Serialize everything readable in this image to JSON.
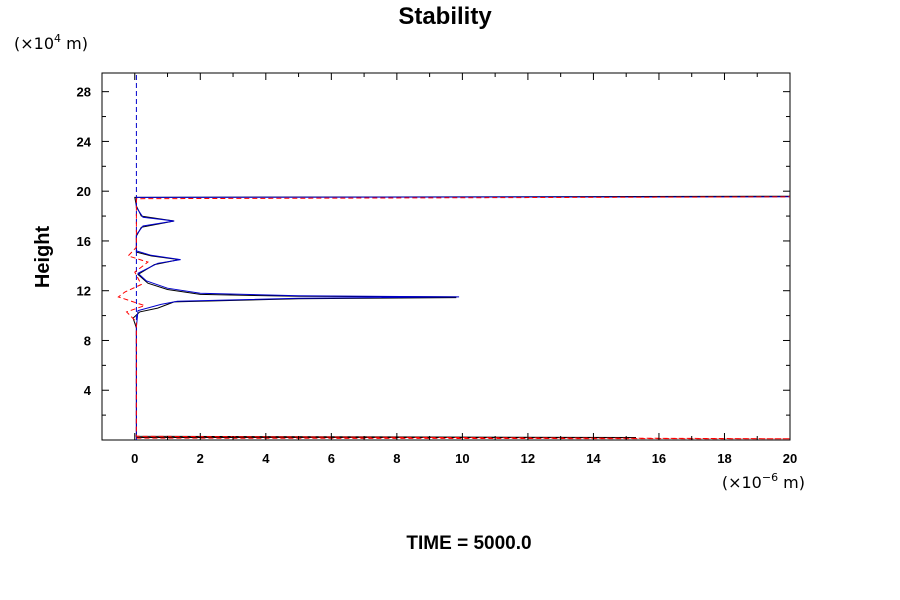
{
  "chart_data": {
    "type": "line",
    "title": "Stability",
    "ylabel": "Height",
    "xlabel": "",
    "y_unit_prefix": "(×10",
    "y_unit_exp": "4",
    "y_unit_suffix": " m)",
    "x_unit_prefix": "(×10",
    "x_unit_exp": "−6",
    "x_unit_suffix": " m)",
    "annotation": "TIME = 5000.0",
    "xlim": [
      -1,
      20
    ],
    "ylim": [
      0,
      29.5
    ],
    "x_ticks": [
      0,
      2,
      4,
      6,
      8,
      10,
      12,
      14,
      16,
      18,
      20
    ],
    "y_ticks": [
      4,
      8,
      12,
      16,
      20,
      24,
      28
    ],
    "x_minor_ticks": [
      -1,
      1,
      3,
      5,
      7,
      9,
      11,
      13,
      15,
      17,
      19
    ],
    "y_minor_ticks": [
      2,
      6,
      10,
      14,
      18,
      22,
      26
    ],
    "grid": false,
    "series": [
      {
        "color": "#000000",
        "dash": "solid",
        "points": [
          [
            0.05,
            0.2
          ],
          [
            15.3,
            0.2
          ],
          [
            0.05,
            0.3
          ],
          [
            0.05,
            9.0
          ],
          [
            -0.05,
            9.8
          ],
          [
            0.15,
            10.3
          ],
          [
            0.7,
            10.6
          ],
          [
            1.2,
            11.1
          ],
          [
            5.0,
            11.35
          ],
          [
            9.8,
            11.45
          ],
          [
            9.8,
            11.5
          ],
          [
            5.0,
            11.55
          ],
          [
            2.0,
            11.7
          ],
          [
            1.0,
            12.1
          ],
          [
            0.4,
            12.6
          ],
          [
            0.1,
            13.3
          ],
          [
            0.6,
            14.1
          ],
          [
            1.35,
            14.5
          ],
          [
            0.5,
            14.8
          ],
          [
            0.05,
            15.1
          ],
          [
            0.05,
            16.4
          ],
          [
            0.2,
            17.1
          ],
          [
            1.2,
            17.6
          ],
          [
            0.2,
            18.0
          ],
          [
            0.05,
            18.8
          ],
          [
            0.0,
            19.5
          ],
          [
            20.0,
            19.6
          ]
        ]
      },
      {
        "color": "#0000cc",
        "dash": "solid",
        "points": [
          [
            0.05,
            0.25
          ],
          [
            0.05,
            9.1
          ],
          [
            0.1,
            10.4
          ],
          [
            0.8,
            10.9
          ],
          [
            1.3,
            11.15
          ],
          [
            5.0,
            11.4
          ],
          [
            9.9,
            11.5
          ],
          [
            5.0,
            11.6
          ],
          [
            2.0,
            11.8
          ],
          [
            1.0,
            12.2
          ],
          [
            0.35,
            12.8
          ],
          [
            0.1,
            13.4
          ],
          [
            0.7,
            14.2
          ],
          [
            1.4,
            14.5
          ],
          [
            0.5,
            14.85
          ],
          [
            0.05,
            15.2
          ],
          [
            0.05,
            16.5
          ],
          [
            0.25,
            17.2
          ],
          [
            1.2,
            17.6
          ],
          [
            0.25,
            17.9
          ],
          [
            0.05,
            18.7
          ],
          [
            0.05,
            19.5
          ],
          [
            20.0,
            19.55
          ]
        ]
      },
      {
        "color": "#0000cc",
        "dash": "dashed",
        "points": [
          [
            0.05,
            0.0
          ],
          [
            0.05,
            29.5
          ]
        ]
      },
      {
        "color": "#ff0000",
        "dash": "dashed",
        "points": [
          [
            0.05,
            0.15
          ],
          [
            20.0,
            0.1
          ],
          [
            0.05,
            0.3
          ],
          [
            0.05,
            9.5
          ],
          [
            -0.25,
            10.3
          ],
          [
            0.3,
            10.8
          ],
          [
            -0.5,
            11.5
          ],
          [
            -0.3,
            11.9
          ],
          [
            0.2,
            12.5
          ],
          [
            0.0,
            13.5
          ],
          [
            0.4,
            14.3
          ],
          [
            -0.2,
            14.8
          ],
          [
            0.05,
            15.5
          ],
          [
            0.05,
            19.4
          ],
          [
            20.0,
            19.55
          ]
        ]
      }
    ]
  }
}
